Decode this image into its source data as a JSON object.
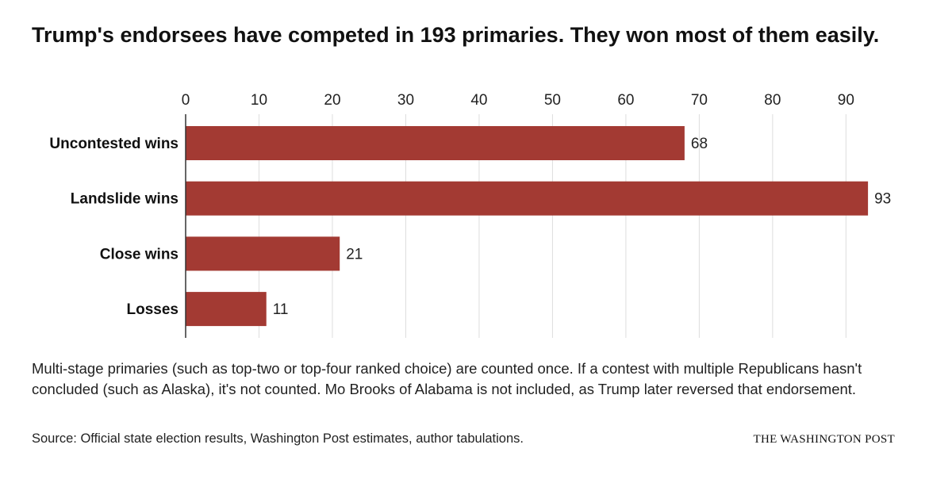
{
  "colors": {
    "bar": "#a33a33",
    "grid": "#dddddd",
    "axis": "#333333",
    "text": "#111111"
  },
  "chart_data": {
    "type": "bar",
    "orientation": "horizontal",
    "title": "Trump's endorsees have competed in 193 primaries. They won most of them easily.",
    "categories": [
      "Uncontested wins",
      "Landslide wins",
      "Close wins",
      "Losses"
    ],
    "values": [
      68,
      93,
      21,
      11
    ],
    "xlim": [
      0,
      95
    ],
    "xticks": [
      0,
      10,
      20,
      30,
      40,
      50,
      60,
      70,
      80,
      90
    ],
    "xaxis_position": "top",
    "grid": true,
    "data_labels": true,
    "xlabel": "",
    "ylabel": ""
  },
  "note": "Multi-stage primaries (such as top-two or top-four ranked choice) are counted once. If a contest with multiple Republicans hasn't concluded (such as Alaska), it's not counted. Mo Brooks of Alabama is not included, as Trump later reversed that endorsement.",
  "source": "Source: Official state election results, Washington Post estimates, author tabulations.",
  "credit": "THE WASHINGTON POST"
}
